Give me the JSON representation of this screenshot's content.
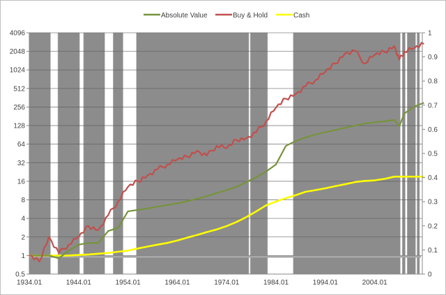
{
  "chart_data": {
    "type": "line",
    "title": "",
    "xlabel": "",
    "ylabel": "",
    "legend_position": "top",
    "grid": true,
    "x_ticks": [
      "1934.01",
      "1944.01",
      "1954.01",
      "1964.01",
      "1974.01",
      "1984.01",
      "1994.01",
      "2004.01"
    ],
    "y_left": {
      "scale": "log2",
      "ticks": [
        "0.5",
        "1",
        "2",
        "4",
        "8",
        "16",
        "32",
        "64",
        "128",
        "256",
        "512",
        "1024",
        "2048",
        "4096"
      ],
      "ylim": [
        0.5,
        4096
      ]
    },
    "y_right": {
      "scale": "linear",
      "ticks": [
        "0",
        "0.1",
        "0.2",
        "0.3",
        "0.4",
        "0.5",
        "0.6",
        "0.7",
        "0.8",
        "0.9",
        "1"
      ],
      "ylim": [
        0,
        1
      ]
    },
    "x": [
      1934,
      1936,
      1938,
      1940,
      1942,
      1944,
      1946,
      1948,
      1950,
      1952,
      1954,
      1956,
      1958,
      1960,
      1962,
      1964,
      1966,
      1968,
      1970,
      1972,
      1974,
      1976,
      1978,
      1980,
      1982,
      1984,
      1986,
      1988,
      1990,
      1992,
      1994,
      1996,
      1998,
      2000,
      2002,
      2004,
      2006,
      2008,
      2009,
      2010,
      2012,
      2014
    ],
    "series": [
      {
        "name": "Absolute Value",
        "color": "#77933c",
        "axis": "left",
        "values": [
          1,
          1,
          1,
          0.9,
          1.2,
          1.5,
          1.6,
          1.6,
          2.5,
          2.8,
          5.2,
          5.5,
          5.8,
          6.2,
          6.6,
          7.0,
          7.6,
          8.3,
          9.2,
          10.3,
          11.5,
          13.0,
          15.5,
          18.5,
          23,
          30,
          60,
          72,
          82,
          92,
          100,
          108,
          118,
          128,
          138,
          145,
          150,
          158,
          125,
          200,
          260,
          300
        ]
      },
      {
        "name": "Buy & Hold",
        "color": "#c0504d",
        "axis": "left",
        "values": [
          1,
          0.8,
          2.0,
          1.1,
          1.5,
          2.0,
          3.0,
          2.6,
          4.5,
          7.5,
          13,
          16,
          20,
          25,
          30,
          36,
          40,
          50,
          42,
          60,
          55,
          75,
          80,
          100,
          150,
          250,
          350,
          420,
          560,
          700,
          950,
          1300,
          1900,
          2100,
          1300,
          1800,
          2000,
          2500,
          1500,
          2000,
          2300,
          2700
        ]
      },
      {
        "name": "Cash",
        "color": "#ffff00",
        "axis": "left",
        "values": [
          1,
          1,
          1,
          1,
          1,
          1.02,
          1.04,
          1.07,
          1.1,
          1.15,
          1.2,
          1.3,
          1.4,
          1.5,
          1.6,
          1.75,
          1.95,
          2.15,
          2.4,
          2.65,
          3.0,
          3.5,
          4.2,
          5.2,
          6.5,
          7.5,
          8.5,
          9.5,
          10.8,
          11.5,
          12.3,
          13.3,
          14.3,
          15.5,
          16.2,
          16.5,
          17.5,
          19,
          19,
          19,
          19,
          19
        ]
      }
    ],
    "background_bands": {
      "description": "Gray shaded regions indicating periods (right axis value ~1); white gaps elsewhere",
      "color": "#8c8c8c",
      "periods": [
        [
          1934.0,
          1938.3
        ],
        [
          1939.8,
          1944.2
        ],
        [
          1945.0,
          1949.3
        ],
        [
          1951.0,
          1953.0
        ],
        [
          1955.7,
          1978.5
        ],
        [
          1978.8,
          1982.3
        ],
        [
          1987.5,
          2009.2
        ],
        [
          2009.6,
          2010.2
        ],
        [
          2010.6,
          2012.3
        ],
        [
          2012.6,
          2013.1
        ]
      ]
    }
  },
  "legend": {
    "items": [
      {
        "label": "Absolute Value",
        "color": "#77933c"
      },
      {
        "label": "Buy & Hold",
        "color": "#c0504d"
      },
      {
        "label": "Cash",
        "color": "#ffff00"
      }
    ]
  }
}
